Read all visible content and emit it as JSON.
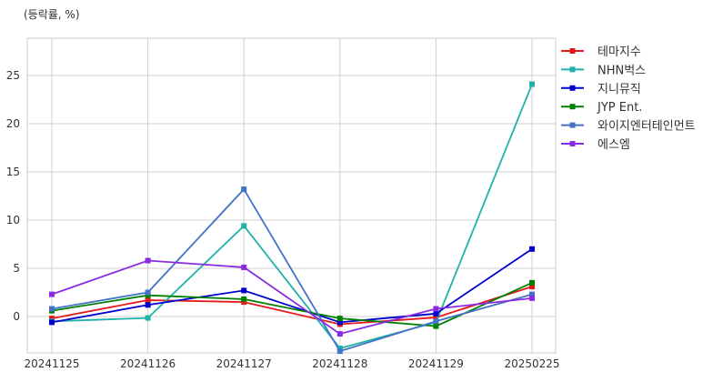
{
  "chart_data": {
    "type": "line",
    "unit_label": "(등락률, %)",
    "categories": [
      "20241125",
      "20241126",
      "20241127",
      "20241128",
      "20241129",
      "20250225"
    ],
    "yticks": [
      0,
      5,
      10,
      15,
      20,
      25
    ],
    "ylim": [
      -3.8,
      29
    ],
    "grid": true,
    "legend_position": "right",
    "series": [
      {
        "name": "테마지수",
        "color": "#e31a1c",
        "values": [
          -0.2,
          1.7,
          1.5,
          -0.8,
          -0.1,
          3.1
        ]
      },
      {
        "name": "NHN벅스",
        "color": "#20b2aa",
        "values": [
          -0.5,
          -0.15,
          9.4,
          -3.3,
          -0.6,
          24.1
        ]
      },
      {
        "name": "지니뮤직",
        "color": "#0000cd",
        "values": [
          -0.6,
          1.2,
          2.7,
          -0.6,
          0.3,
          7.0
        ]
      },
      {
        "name": "JYP Ent.",
        "color": "#008000",
        "values": [
          0.6,
          2.2,
          1.8,
          -0.2,
          -1.0,
          3.5
        ]
      },
      {
        "name": "와이지엔터테인먼트",
        "color": "#4472c4",
        "values": [
          0.8,
          2.5,
          13.2,
          -3.6,
          -0.5,
          2.3
        ]
      },
      {
        "name": "에스엠",
        "color": "#8a2be2",
        "values": [
          2.3,
          5.8,
          5.1,
          -1.8,
          0.8,
          1.9
        ]
      }
    ]
  }
}
